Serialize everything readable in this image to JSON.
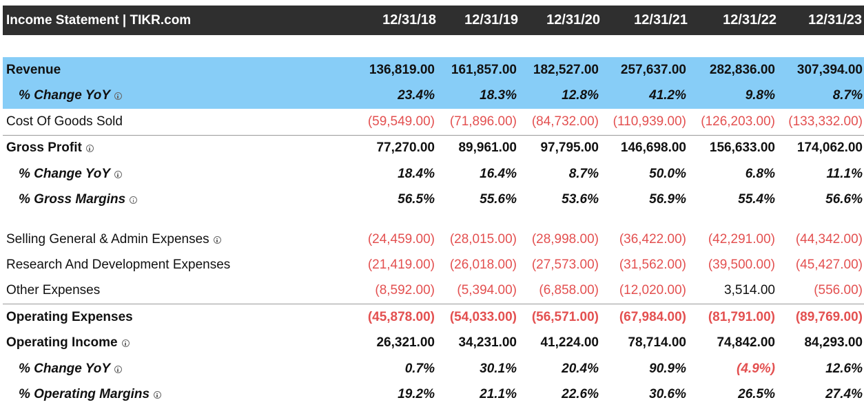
{
  "header": {
    "title": "Income Statement | TIKR.com",
    "years": [
      "12/31/18",
      "12/31/19",
      "12/31/20",
      "12/31/21",
      "12/31/22",
      "12/31/23"
    ]
  },
  "rows": [
    {
      "label": "Revenue",
      "values": [
        "136,819.00",
        "161,857.00",
        "182,527.00",
        "257,637.00",
        "282,836.00",
        "307,394.00"
      ]
    },
    {
      "label": "% Change YoY",
      "values": [
        "23.4%",
        "18.3%",
        "12.8%",
        "41.2%",
        "9.8%",
        "8.7%"
      ]
    },
    {
      "label": "Cost Of Goods Sold",
      "values": [
        "(59,549.00)",
        "(71,896.00)",
        "(84,732.00)",
        "(110,939.00)",
        "(126,203.00)",
        "(133,332.00)"
      ]
    },
    {
      "label": "Gross Profit",
      "values": [
        "77,270.00",
        "89,961.00",
        "97,795.00",
        "146,698.00",
        "156,633.00",
        "174,062.00"
      ]
    },
    {
      "label": "% Change YoY",
      "values": [
        "18.4%",
        "16.4%",
        "8.7%",
        "50.0%",
        "6.8%",
        "11.1%"
      ]
    },
    {
      "label": "% Gross Margins",
      "values": [
        "56.5%",
        "55.6%",
        "53.6%",
        "56.9%",
        "55.4%",
        "56.6%"
      ]
    },
    {
      "label": "Selling General & Admin Expenses",
      "values": [
        "(24,459.00)",
        "(28,015.00)",
        "(28,998.00)",
        "(36,422.00)",
        "(42,291.00)",
        "(44,342.00)"
      ]
    },
    {
      "label": "Research And Development Expenses",
      "values": [
        "(21,419.00)",
        "(26,018.00)",
        "(27,573.00)",
        "(31,562.00)",
        "(39,500.00)",
        "(45,427.00)"
      ]
    },
    {
      "label": "Other Expenses",
      "values": [
        "(8,592.00)",
        "(5,394.00)",
        "(6,858.00)",
        "(12,020.00)",
        "3,514.00",
        "(556.00)"
      ]
    },
    {
      "label": "Operating Expenses",
      "values": [
        "(45,878.00)",
        "(54,033.00)",
        "(56,571.00)",
        "(67,984.00)",
        "(81,791.00)",
        "(89,769.00)"
      ]
    },
    {
      "label": "Operating Income",
      "values": [
        "26,321.00",
        "34,231.00",
        "41,224.00",
        "78,714.00",
        "74,842.00",
        "84,293.00"
      ]
    },
    {
      "label": "% Change YoY",
      "values": [
        "0.7%",
        "30.1%",
        "20.4%",
        "90.9%",
        "(4.9%)",
        "12.6%"
      ]
    },
    {
      "label": "% Operating Margins",
      "values": [
        "19.2%",
        "21.1%",
        "22.6%",
        "30.6%",
        "26.5%",
        "27.4%"
      ]
    }
  ],
  "colors": {
    "header_bg": "#2f2f2f",
    "highlight_bg": "#87cdf7",
    "negative": "#e35050"
  },
  "icons": {
    "info": "info-icon"
  }
}
